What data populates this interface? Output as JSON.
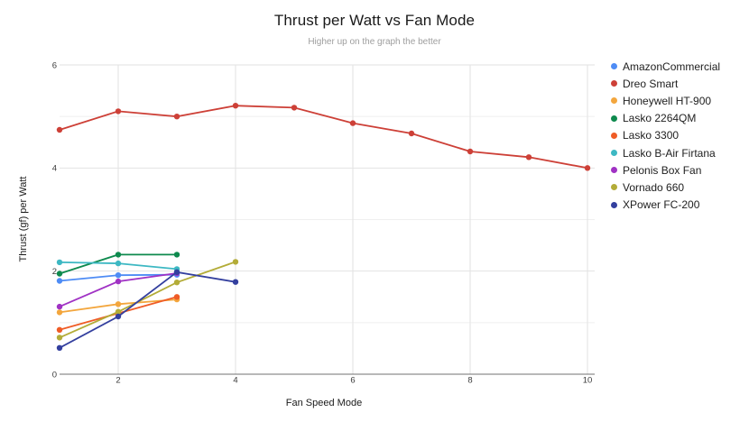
{
  "chart_data": {
    "type": "line",
    "title": "Thrust per Watt vs Fan Mode",
    "subtitle": "Higher up on the graph the better",
    "xlabel": "Fan Speed Mode",
    "ylabel": "Thrust (gf) per Watt",
    "xlim": [
      1,
      10
    ],
    "ylim": [
      0,
      6
    ],
    "x_ticks": [
      2,
      4,
      6,
      8,
      10
    ],
    "y_ticks": [
      0,
      2,
      4,
      6
    ],
    "grid": true,
    "legend_position": "right",
    "series": [
      {
        "name": "AmazonCommercial",
        "color": "#4e8cf5",
        "x": [
          1,
          2,
          3
        ],
        "values": [
          1.81,
          1.92,
          1.93
        ]
      },
      {
        "name": "Dreo Smart",
        "color": "#cd4037",
        "x": [
          1,
          2,
          3,
          4,
          5,
          6,
          7,
          8,
          9,
          10
        ],
        "values": [
          4.74,
          5.1,
          5.0,
          5.21,
          5.17,
          4.87,
          4.67,
          4.32,
          4.21,
          4.0
        ]
      },
      {
        "name": "Honeywell HT-900",
        "color": "#f3a63d",
        "x": [
          1,
          2,
          3
        ],
        "values": [
          1.2,
          1.36,
          1.45
        ]
      },
      {
        "name": "Lasko 2264QM",
        "color": "#0e8a4e",
        "x": [
          1,
          2,
          3
        ],
        "values": [
          1.95,
          2.32,
          2.32
        ]
      },
      {
        "name": "Lasko 3300",
        "color": "#ef5c26",
        "x": [
          1,
          2,
          3
        ],
        "values": [
          0.86,
          1.18,
          1.5
        ]
      },
      {
        "name": "Lasko B-Air Firtana",
        "color": "#3db8c3",
        "x": [
          1,
          2,
          3
        ],
        "values": [
          2.17,
          2.15,
          2.04
        ]
      },
      {
        "name": "Pelonis Box Fan",
        "color": "#a032c4",
        "x": [
          1,
          2,
          3
        ],
        "values": [
          1.31,
          1.8,
          1.96
        ]
      },
      {
        "name": "Vornado 660",
        "color": "#b3ac38",
        "x": [
          1,
          2,
          3,
          4
        ],
        "values": [
          0.71,
          1.21,
          1.78,
          2.18
        ]
      },
      {
        "name": "XPower FC-200",
        "color": "#333f9e",
        "x": [
          1,
          2,
          3,
          4
        ],
        "values": [
          0.51,
          1.12,
          1.98,
          1.79
        ]
      }
    ]
  }
}
